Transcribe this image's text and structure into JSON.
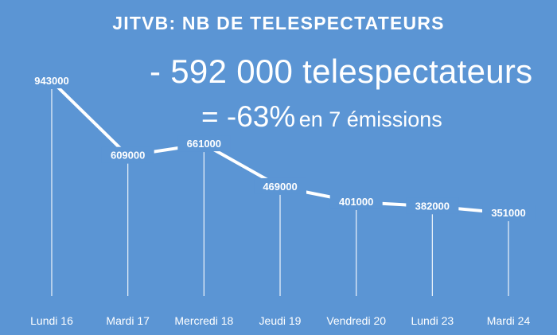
{
  "chart_data": {
    "type": "line",
    "title": "JITVB: NB DE TELESPECTATEURS",
    "categories": [
      "Lundi 16",
      "Mardi 17",
      "Mercredi 18",
      "Jeudi 19",
      "Vendredi 20",
      "Lundi 23",
      "Mardi 24"
    ],
    "values": [
      943000,
      609000,
      661000,
      469000,
      401000,
      382000,
      351000
    ],
    "data_labels": [
      "943000",
      "609000",
      "661000",
      "469000",
      "401000",
      "382000",
      "351000"
    ],
    "annotations": {
      "line1": "- 592 000 telespectateurs",
      "line2_big": "= -63%",
      "line2_small": "en 7 émissions"
    },
    "xlabel": "",
    "ylabel": "",
    "grid": false,
    "legend": "none",
    "colors": {
      "background": "#5b95d4",
      "line": "#ffffff",
      "text": "#ffffff"
    }
  }
}
